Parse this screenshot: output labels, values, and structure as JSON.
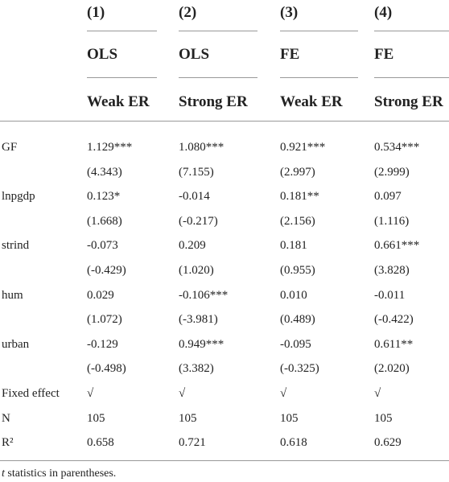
{
  "header": {
    "numbers": [
      "(1)",
      "(2)",
      "(3)",
      "(4)"
    ],
    "methods": [
      "OLS",
      "OLS",
      "FE",
      "FE"
    ],
    "samples": [
      "Weak ER",
      "Strong ER",
      "Weak ER",
      "Strong ER"
    ]
  },
  "variables": [
    {
      "label": "GF",
      "coef": [
        "1.129***",
        "1.080***",
        "0.921***",
        "0.534***"
      ],
      "t": [
        "(4.343)",
        "(7.155)",
        "(2.997)",
        "(2.999)"
      ]
    },
    {
      "label": "lnpgdp",
      "coef": [
        "0.123*",
        "-0.014",
        "0.181**",
        "0.097"
      ],
      "t": [
        "(1.668)",
        "(-0.217)",
        "(2.156)",
        "(1.116)"
      ]
    },
    {
      "label": "strind",
      "coef": [
        "-0.073",
        "0.209",
        "0.181",
        "0.661***"
      ],
      "t": [
        "(-0.429)",
        "(1.020)",
        "(0.955)",
        "(3.828)"
      ]
    },
    {
      "label": "hum",
      "coef": [
        "0.029",
        "-0.106***",
        "0.010",
        "-0.011"
      ],
      "t": [
        "(1.072)",
        "(-3.981)",
        "(0.489)",
        "(-0.422)"
      ]
    },
    {
      "label": "urban",
      "coef": [
        "-0.129",
        "0.949***",
        "-0.095",
        "0.611**"
      ],
      "t": [
        "(-0.498)",
        "(3.382)",
        "(-0.325)",
        "(2.020)"
      ]
    }
  ],
  "stats": [
    {
      "label": "Fixed effect",
      "values": [
        "√",
        "√",
        "√",
        "√"
      ]
    },
    {
      "label": "N",
      "values": [
        "105",
        "105",
        "105",
        "105"
      ]
    },
    {
      "label": "R²",
      "values": [
        "0.658",
        "0.721",
        "0.618",
        "0.629"
      ]
    }
  ],
  "note": {
    "variable": "t",
    "text": "statistics in parentheses."
  }
}
